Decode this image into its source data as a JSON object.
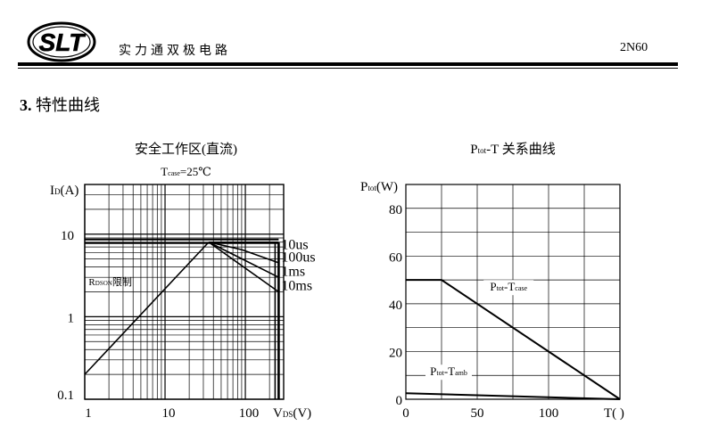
{
  "header": {
    "logo_text": "SLT",
    "company": "实力通双极电路",
    "model": "2N60"
  },
  "section": {
    "number": "3.",
    "title": "特性曲线"
  },
  "chart_data": [
    {
      "type": "line",
      "title": "安全工作区(直流)",
      "subtitle": "T",
      "subtitle_sub": "case",
      "subtitle_suffix": "=25℃",
      "ylabel": "I",
      "ylabel_sub": "D",
      "ylabel_unit": "(A)",
      "xlabel": "V",
      "xlabel_sub": "DS",
      "xlabel_unit": "(V)",
      "xscale": "log",
      "yscale": "log",
      "xlim": [
        1,
        300
      ],
      "ylim": [
        0.1,
        40
      ],
      "x_tick_labels": [
        "1",
        "10",
        "100"
      ],
      "y_tick_labels": [
        "0.1",
        "1",
        "10"
      ],
      "annotation": "R",
      "annotation_sub": "DSON",
      "annotation_suffix": "限制",
      "series": [
        {
          "name": "10us",
          "x": [
            35,
            260
          ],
          "y": [
            8.0,
            8.0
          ]
        },
        {
          "name": "100us",
          "x": [
            35,
            90,
            260
          ],
          "y": [
            8.0,
            6.5,
            4.5
          ]
        },
        {
          "name": "1ms",
          "x": [
            35,
            260
          ],
          "y": [
            8.0,
            3.0
          ]
        },
        {
          "name": "10ms",
          "x": [
            35,
            260
          ],
          "y": [
            8.0,
            2.0
          ]
        }
      ],
      "rdson_line": {
        "x": [
          1,
          35
        ],
        "y": [
          0.2,
          8.0
        ]
      },
      "current_limit": {
        "x": [
          1,
          260
        ],
        "y": [
          8.0,
          8.0
        ]
      },
      "voltage_limit": {
        "x": [
          260,
          260
        ],
        "y": [
          0.1,
          8.0
        ]
      }
    },
    {
      "type": "line",
      "title": "P",
      "title_sub": "tot",
      "title_suffix": "-T  关系曲线",
      "ylabel": "P",
      "ylabel_sub": "tot",
      "ylabel_unit": "(W)",
      "xlabel": "T(   )",
      "xlim": [
        0,
        150
      ],
      "ylim": [
        0,
        90
      ],
      "x_ticks": [
        0,
        50,
        100
      ],
      "y_ticks": [
        0,
        20,
        40,
        60,
        80
      ],
      "grid": true,
      "series": [
        {
          "name": "P",
          "name_sub": "tot",
          "name_mid": "-T",
          "name_sub2": "case",
          "x": [
            0,
            25,
            150
          ],
          "y": [
            50,
            50,
            0
          ]
        },
        {
          "name": "P",
          "name_sub": "tot",
          "name_mid": "-T",
          "name_sub2": "amb",
          "x": [
            0,
            150
          ],
          "y": [
            2.5,
            0
          ]
        }
      ]
    }
  ]
}
